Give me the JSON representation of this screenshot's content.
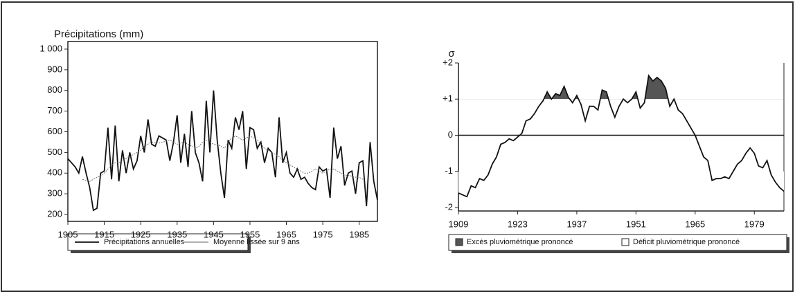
{
  "chart_data": [
    {
      "type": "line",
      "y_label": "Précipitations (mm)",
      "x": [
        1905,
        1906,
        1907,
        1908,
        1909,
        1910,
        1911,
        1912,
        1913,
        1914,
        1915,
        1916,
        1917,
        1918,
        1919,
        1920,
        1921,
        1922,
        1923,
        1924,
        1925,
        1926,
        1927,
        1928,
        1929,
        1930,
        1931,
        1932,
        1933,
        1934,
        1935,
        1936,
        1937,
        1938,
        1939,
        1940,
        1941,
        1942,
        1943,
        1944,
        1945,
        1946,
        1947,
        1948,
        1949,
        1950,
        1951,
        1952,
        1953,
        1954,
        1955,
        1956,
        1957,
        1958,
        1959,
        1960,
        1961,
        1962,
        1963,
        1964,
        1965,
        1966,
        1967,
        1968,
        1969,
        1970,
        1971,
        1972,
        1973,
        1974,
        1975,
        1976,
        1977,
        1978,
        1979,
        1980,
        1981,
        1982,
        1983,
        1984,
        1985,
        1986,
        1987,
        1988,
        1989,
        1990
      ],
      "series": [
        {
          "name": "Précipitations annuelles",
          "color": "#111",
          "values": [
            470,
            450,
            430,
            400,
            480,
            400,
            330,
            220,
            230,
            400,
            410,
            620,
            370,
            630,
            360,
            510,
            400,
            500,
            420,
            460,
            580,
            500,
            660,
            540,
            530,
            580,
            570,
            560,
            460,
            550,
            680,
            450,
            590,
            430,
            700,
            500,
            450,
            360,
            750,
            500,
            800,
            560,
            400,
            280,
            560,
            520,
            670,
            610,
            700,
            420,
            620,
            610,
            520,
            550,
            450,
            520,
            500,
            380,
            670,
            450,
            500,
            400,
            380,
            420,
            370,
            380,
            350,
            330,
            320,
            430,
            410,
            420,
            280,
            620,
            470,
            530,
            340,
            400,
            410,
            300,
            450,
            460,
            240,
            550,
            360,
            270
          ]
        },
        {
          "name": "Moyenne lissée sur 9 ans",
          "color": "#666",
          "values": [
            null,
            null,
            null,
            null,
            370,
            365,
            360,
            370,
            380,
            385,
            400,
            420,
            440,
            450,
            450,
            460,
            470,
            480,
            490,
            500,
            510,
            530,
            540,
            550,
            550,
            545,
            550,
            555,
            560,
            550,
            540,
            545,
            550,
            540,
            530,
            520,
            530,
            550,
            560,
            550,
            540,
            540,
            530,
            520,
            550,
            570,
            580,
            570,
            560,
            570,
            580,
            570,
            560,
            540,
            520,
            510,
            500,
            490,
            480,
            460,
            450,
            440,
            430,
            420,
            410,
            400,
            400,
            410,
            420,
            410,
            400,
            410,
            420,
            420,
            410,
            400,
            390,
            390,
            385,
            380,
            380,
            370,
            null,
            null,
            null,
            null
          ]
        }
      ],
      "xlim": [
        1905,
        1990
      ],
      "xticks": [
        1905,
        1915,
        1925,
        1935,
        1945,
        1955,
        1965,
        1975,
        1985
      ],
      "ylim": [
        200,
        1000
      ],
      "yticks": [
        200,
        300,
        400,
        500,
        600,
        700,
        800,
        900,
        {
          "value": 1000,
          "label": "1 000"
        }
      ]
    },
    {
      "type": "line",
      "y_label": "σ",
      "x": [
        1909,
        1910,
        1911,
        1912,
        1913,
        1914,
        1915,
        1916,
        1917,
        1918,
        1919,
        1920,
        1921,
        1922,
        1923,
        1924,
        1925,
        1926,
        1927,
        1928,
        1929,
        1930,
        1931,
        1932,
        1933,
        1934,
        1935,
        1936,
        1937,
        1938,
        1939,
        1940,
        1941,
        1942,
        1943,
        1944,
        1945,
        1946,
        1947,
        1948,
        1949,
        1950,
        1951,
        1952,
        1953,
        1954,
        1955,
        1956,
        1957,
        1958,
        1959,
        1960,
        1961,
        1962,
        1963,
        1964,
        1965,
        1966,
        1967,
        1968,
        1969,
        1970,
        1971,
        1972,
        1973,
        1974,
        1975,
        1976,
        1977,
        1978,
        1979,
        1980,
        1981,
        1982,
        1983,
        1984,
        1985,
        1986
      ],
      "series": [
        {
          "color": "#111",
          "values": [
            -1.6,
            -1.65,
            -1.7,
            -1.4,
            -1.45,
            -1.2,
            -1.25,
            -1.1,
            -0.8,
            -0.6,
            -0.25,
            -0.2,
            -0.1,
            -0.15,
            -0.05,
            0.05,
            0.4,
            0.45,
            0.6,
            0.8,
            0.95,
            1.2,
            1.0,
            1.15,
            1.1,
            1.35,
            1.05,
            0.9,
            1.1,
            0.85,
            0.4,
            0.8,
            0.8,
            0.7,
            1.25,
            1.2,
            0.8,
            0.5,
            0.8,
            1.0,
            0.9,
            1.0,
            1.2,
            0.75,
            0.9,
            1.65,
            1.5,
            1.6,
            1.5,
            1.3,
            0.8,
            1.0,
            0.7,
            0.6,
            0.4,
            0.2,
            0.0,
            -0.3,
            -0.6,
            -0.7,
            -1.25,
            -1.2,
            -1.2,
            -1.15,
            -1.2,
            -1.0,
            -0.8,
            -0.7,
            -0.5,
            -0.35,
            -0.5,
            -0.85,
            -0.9,
            -0.7,
            -1.1,
            -1.3,
            -1.45,
            -1.55
          ]
        }
      ],
      "legend": [
        {
          "name": "Excès pluviométrique prononcé",
          "color": "#555"
        },
        {
          "name": "Déficit pluviométrique prononcé",
          "color": "#fff"
        }
      ],
      "xlim": [
        1909,
        1986
      ],
      "xticks": [
        1909,
        1923,
        1937,
        1951,
        1965,
        1979
      ],
      "ylim": [
        -2,
        2
      ],
      "yticks": [
        -2,
        -1,
        0,
        {
          "value": 1,
          "label": "+1"
        },
        {
          "value": 2,
          "label": "+2"
        }
      ]
    }
  ]
}
